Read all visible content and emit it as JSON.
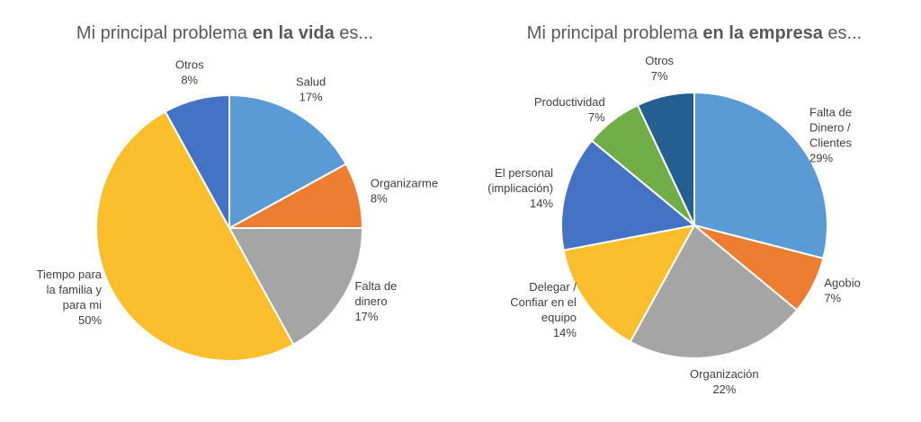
{
  "chart_data": [
    {
      "type": "pie",
      "title": [
        "Mi principal problema",
        "en la vida",
        "es..."
      ],
      "categories": [
        [
          "Salud"
        ],
        [
          "Organizarme"
        ],
        [
          "Falta de",
          "dinero"
        ],
        [
          "Tiempo para",
          "la familia y",
          "para mi"
        ],
        [
          "Otros"
        ]
      ],
      "values": [
        17,
        8,
        17,
        50,
        8
      ],
      "value_labels": [
        "17%",
        "8%",
        "17%",
        "50%",
        "8%"
      ],
      "colors": [
        "#5b9bd5",
        "#ed7d31",
        "#a5a5a5",
        "#fbbf2e",
        "#4472c4"
      ]
    },
    {
      "type": "pie",
      "title": [
        "Mi principal problema",
        "en la empresa",
        "es..."
      ],
      "categories": [
        [
          "Falta de",
          "Dinero /",
          "Clientes"
        ],
        [
          "Agobio"
        ],
        [
          "Organización"
        ],
        [
          "Delegar /",
          "Confiar en el",
          "equipo"
        ],
        [
          "El personal",
          "(implicación)"
        ],
        [
          "Productividad"
        ],
        [
          "Otros"
        ]
      ],
      "values": [
        29,
        7,
        22,
        14,
        14,
        7,
        7
      ],
      "value_labels": [
        "29%",
        "7%",
        "22%",
        "14%",
        "14%",
        "7%",
        "7%"
      ],
      "colors": [
        "#5b9bd5",
        "#ed7d31",
        "#a5a5a5",
        "#fbbf2e",
        "#4472c4",
        "#70ad47",
        "#255e91"
      ]
    }
  ]
}
